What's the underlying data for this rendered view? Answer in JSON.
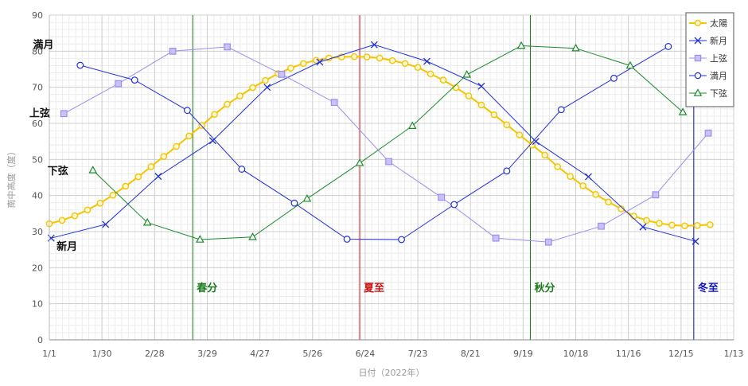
{
  "chart_data": {
    "type": "line",
    "title": "",
    "xlabel": "日付（2022年）",
    "ylabel": "南中高度（度）",
    "ylim": [
      0,
      90
    ],
    "yticks": [
      0,
      10,
      20,
      30,
      40,
      50,
      60,
      70,
      80,
      90
    ],
    "xlim": [
      "2022-01-01",
      "2023-01-13"
    ],
    "xticks": [
      {
        "date": "2022-01-01",
        "label": "1/1"
      },
      {
        "date": "2022-01-30",
        "label": "1/30"
      },
      {
        "date": "2022-02-28",
        "label": "2/28"
      },
      {
        "date": "2022-03-29",
        "label": "3/29"
      },
      {
        "date": "2022-04-27",
        "label": "4/27"
      },
      {
        "date": "2022-05-26",
        "label": "5/26"
      },
      {
        "date": "2022-06-24",
        "label": "6/24"
      },
      {
        "date": "2022-07-23",
        "label": "7/23"
      },
      {
        "date": "2022-08-21",
        "label": "8/21"
      },
      {
        "date": "2022-09-19",
        "label": "9/19"
      },
      {
        "date": "2022-10-18",
        "label": "10/18"
      },
      {
        "date": "2022-11-16",
        "label": "11/16"
      },
      {
        "date": "2022-12-15",
        "label": "12/15"
      },
      {
        "date": "2023-01-13",
        "label": "1/13"
      }
    ],
    "grid": true,
    "legend_position": "top-right",
    "series": [
      {
        "name": "太陽",
        "color": "#f5c400",
        "marker": "circle",
        "points": [
          [
            "2022-01-01",
            32.2
          ],
          [
            "2022-01-08",
            33.1
          ],
          [
            "2022-01-15",
            34.4
          ],
          [
            "2022-01-22",
            36.0
          ],
          [
            "2022-01-29",
            37.9
          ],
          [
            "2022-02-05",
            40.1
          ],
          [
            "2022-02-12",
            42.6
          ],
          [
            "2022-02-19",
            45.2
          ],
          [
            "2022-02-26",
            48.0
          ],
          [
            "2022-03-05",
            50.8
          ],
          [
            "2022-03-12",
            53.6
          ],
          [
            "2022-03-19",
            56.5
          ],
          [
            "2022-03-26",
            59.4
          ],
          [
            "2022-04-02",
            62.5
          ],
          [
            "2022-04-09",
            65.3
          ],
          [
            "2022-04-16",
            67.6
          ],
          [
            "2022-04-23",
            69.9
          ],
          [
            "2022-04-30",
            71.9
          ],
          [
            "2022-05-07",
            73.8
          ],
          [
            "2022-05-14",
            75.3
          ],
          [
            "2022-05-21",
            76.6
          ],
          [
            "2022-05-28",
            77.5
          ],
          [
            "2022-06-04",
            78.1
          ],
          [
            "2022-06-11",
            78.4
          ],
          [
            "2022-06-18",
            78.5
          ],
          [
            "2022-06-25",
            78.4
          ],
          [
            "2022-07-02",
            78.1
          ],
          [
            "2022-07-09",
            77.4
          ],
          [
            "2022-07-16",
            76.6
          ],
          [
            "2022-07-23",
            75.5
          ],
          [
            "2022-07-30",
            73.7
          ],
          [
            "2022-08-06",
            72.0
          ],
          [
            "2022-08-13",
            69.9
          ],
          [
            "2022-08-20",
            67.6
          ],
          [
            "2022-08-27",
            65.1
          ],
          [
            "2022-09-03",
            62.4
          ],
          [
            "2022-09-10",
            59.6
          ],
          [
            "2022-09-17",
            56.8
          ],
          [
            "2022-09-24",
            54.0
          ],
          [
            "2022-10-01",
            51.2
          ],
          [
            "2022-10-08",
            48.0
          ],
          [
            "2022-10-15",
            45.3
          ],
          [
            "2022-10-22",
            42.7
          ],
          [
            "2022-10-29",
            40.3
          ],
          [
            "2022-11-05",
            38.2
          ],
          [
            "2022-11-12",
            36.3
          ],
          [
            "2022-11-19",
            34.3
          ],
          [
            "2022-11-26",
            33.1
          ],
          [
            "2022-12-03",
            32.3
          ],
          [
            "2022-12-10",
            31.8
          ],
          [
            "2022-12-17",
            31.6
          ],
          [
            "2022-12-24",
            31.7
          ],
          [
            "2022-12-31",
            31.9
          ]
        ]
      },
      {
        "name": "新月",
        "color": "#1f2ee0",
        "marker": "x",
        "points": [
          [
            "2022-01-02",
            28.2
          ],
          [
            "2022-02-01",
            32.0
          ],
          [
            "2022-03-02",
            45.3
          ],
          [
            "2022-04-01",
            55.2
          ],
          [
            "2022-05-01",
            70.0
          ],
          [
            "2022-05-30",
            77.0
          ],
          [
            "2022-06-29",
            81.8
          ],
          [
            "2022-07-28",
            77.2
          ],
          [
            "2022-08-27",
            70.3
          ],
          [
            "2022-09-26",
            55.0
          ],
          [
            "2022-10-25",
            45.2
          ],
          [
            "2022-11-24",
            31.3
          ],
          [
            "2022-12-23",
            27.3
          ]
        ]
      },
      {
        "name": "上弦",
        "color": "#9b8ff0",
        "marker": "square",
        "points": [
          [
            "2022-01-09",
            62.7
          ],
          [
            "2022-02-08",
            71.0
          ],
          [
            "2022-03-10",
            80.0
          ],
          [
            "2022-04-09",
            81.2
          ],
          [
            "2022-05-09",
            73.6
          ],
          [
            "2022-06-07",
            65.8
          ],
          [
            "2022-07-07",
            49.4
          ],
          [
            "2022-08-05",
            39.5
          ],
          [
            "2022-09-04",
            28.2
          ],
          [
            "2022-10-03",
            27.1
          ],
          [
            "2022-11-01",
            31.5
          ],
          [
            "2022-12-01",
            40.2
          ],
          [
            "2022-12-30",
            57.3
          ]
        ]
      },
      {
        "name": "満月",
        "color": "#1f2ee0",
        "marker": "circle-open",
        "points": [
          [
            "2022-01-18",
            76.1
          ],
          [
            "2022-02-17",
            72.0
          ],
          [
            "2022-03-18",
            63.6
          ],
          [
            "2022-04-17",
            47.3
          ],
          [
            "2022-05-16",
            37.9
          ],
          [
            "2022-06-14",
            27.9
          ],
          [
            "2022-07-14",
            27.8
          ],
          [
            "2022-08-12",
            37.5
          ],
          [
            "2022-09-10",
            46.8
          ],
          [
            "2022-10-10",
            63.8
          ],
          [
            "2022-11-08",
            72.5
          ],
          [
            "2022-12-08",
            81.3
          ]
        ]
      },
      {
        "name": "下弦",
        "color": "#1a8a2a",
        "marker": "triangle",
        "points": [
          [
            "2022-01-25",
            47.0
          ],
          [
            "2022-02-24",
            32.5
          ],
          [
            "2022-03-25",
            27.8
          ],
          [
            "2022-04-23",
            28.5
          ],
          [
            "2022-05-23",
            39.1
          ],
          [
            "2022-06-21",
            49.0
          ],
          [
            "2022-07-20",
            59.3
          ],
          [
            "2022-08-19",
            73.5
          ],
          [
            "2022-09-18",
            81.5
          ],
          [
            "2022-10-18",
            80.8
          ],
          [
            "2022-11-17",
            76.0
          ],
          [
            "2022-12-16",
            63.1
          ]
        ]
      }
    ],
    "vlines": [
      {
        "label": "春分",
        "date": "2022-03-21",
        "color": "#1a7a1a"
      },
      {
        "label": "夏至",
        "date": "2022-06-21",
        "color": "#cc1010"
      },
      {
        "label": "秋分",
        "date": "2022-09-23",
        "color": "#1a7a1a"
      },
      {
        "label": "冬至",
        "date": "2022-12-22",
        "color": "#1010cc"
      }
    ],
    "annotations": [
      {
        "text": "満月",
        "color": "#111111",
        "at": {
          "date": "2021-12-23",
          "value": 82
        }
      },
      {
        "text": "上弦",
        "color": "#111111",
        "at": {
          "date": "2021-12-21",
          "value": 63
        }
      },
      {
        "text": "下弦",
        "color": "#111111",
        "at": {
          "date": "2021-12-31",
          "value": 47
        }
      },
      {
        "text": "新月",
        "color": "#111111",
        "at": {
          "date": "2022-01-05",
          "value": 26
        }
      }
    ]
  }
}
